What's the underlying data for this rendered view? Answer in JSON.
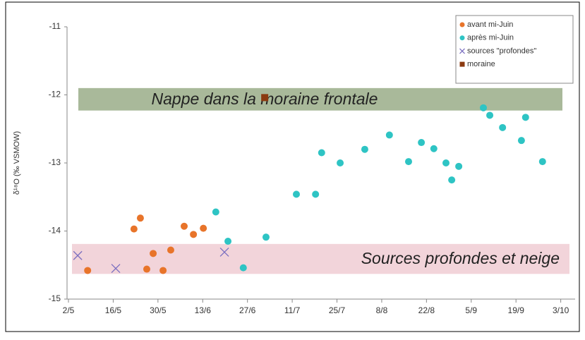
{
  "chart_data": {
    "type": "scatter",
    "y_label": "δ¹⁸O (‰ VSMOW)",
    "xlim": [
      0,
      158
    ],
    "xticks": [
      {
        "value": 0,
        "label": "2/5"
      },
      {
        "value": 14,
        "label": "16/5"
      },
      {
        "value": 28,
        "label": "30/5"
      },
      {
        "value": 42,
        "label": "13/6"
      },
      {
        "value": 56,
        "label": "27/6"
      },
      {
        "value": 70,
        "label": "11/7"
      },
      {
        "value": 84,
        "label": "25/7"
      },
      {
        "value": 98,
        "label": "8/8"
      },
      {
        "value": 112,
        "label": "22/8"
      },
      {
        "value": 126,
        "label": "5/9"
      },
      {
        "value": 140,
        "label": "19/9"
      },
      {
        "value": 154,
        "label": "3/10"
      }
    ],
    "ylim": [
      -15,
      -11
    ],
    "yticks": [
      -15,
      -14,
      -13,
      -12,
      -11
    ],
    "grid": false,
    "legend": "upper right",
    "series": [
      {
        "name": "avant mi-Juin",
        "color": "#e8742a",
        "marker": "circle",
        "x": [
          6.0,
          20.5,
          22.5,
          24.5,
          26.5,
          29.6,
          32.0,
          36.2,
          39.1,
          42.2
        ],
        "values": [
          -14.58,
          -13.97,
          -13.81,
          -14.56,
          -14.33,
          -14.58,
          -14.28,
          -13.93,
          -14.05,
          -13.96
        ]
      },
      {
        "name": "après mi-Juin",
        "color": "#2ec4c4",
        "marker": "circle",
        "x": [
          46.1,
          49.9,
          54.7,
          61.8,
          71.3,
          77.3,
          79.2,
          85.0,
          92.7,
          100.4,
          106.4,
          110.4,
          114.3,
          118.1,
          119.9,
          122.1,
          129.8,
          131.8,
          135.8,
          141.7,
          143.0,
          148.3
        ],
        "values": [
          -13.72,
          -14.15,
          -14.54,
          -14.09,
          -13.46,
          -13.46,
          -12.85,
          -13.0,
          -12.8,
          -12.59,
          -12.98,
          -12.7,
          -12.79,
          -13.0,
          -13.25,
          -13.05,
          -12.19,
          -12.3,
          -12.48,
          -12.67,
          -12.33,
          -12.98
        ]
      },
      {
        "name": "sources \"profondes\"",
        "color": "#7b6fc0",
        "marker": "x",
        "x": [
          2.9,
          14.8,
          48.8
        ],
        "values": [
          -14.36,
          -14.55,
          -14.31
        ]
      },
      {
        "name": "moraine",
        "color": "#8b3a10",
        "marker": "square",
        "x": [
          61.4
        ],
        "values": [
          -12.04
        ]
      }
    ],
    "annotations": [
      {
        "text": "Nappe dans la moraine frontale",
        "ymin": -12.23,
        "ymax": -11.9,
        "color": "#a9b99a"
      },
      {
        "text": "Sources profondes et neige",
        "ymin": -14.63,
        "ymax": -14.19,
        "color": "#f2d4da"
      }
    ]
  }
}
